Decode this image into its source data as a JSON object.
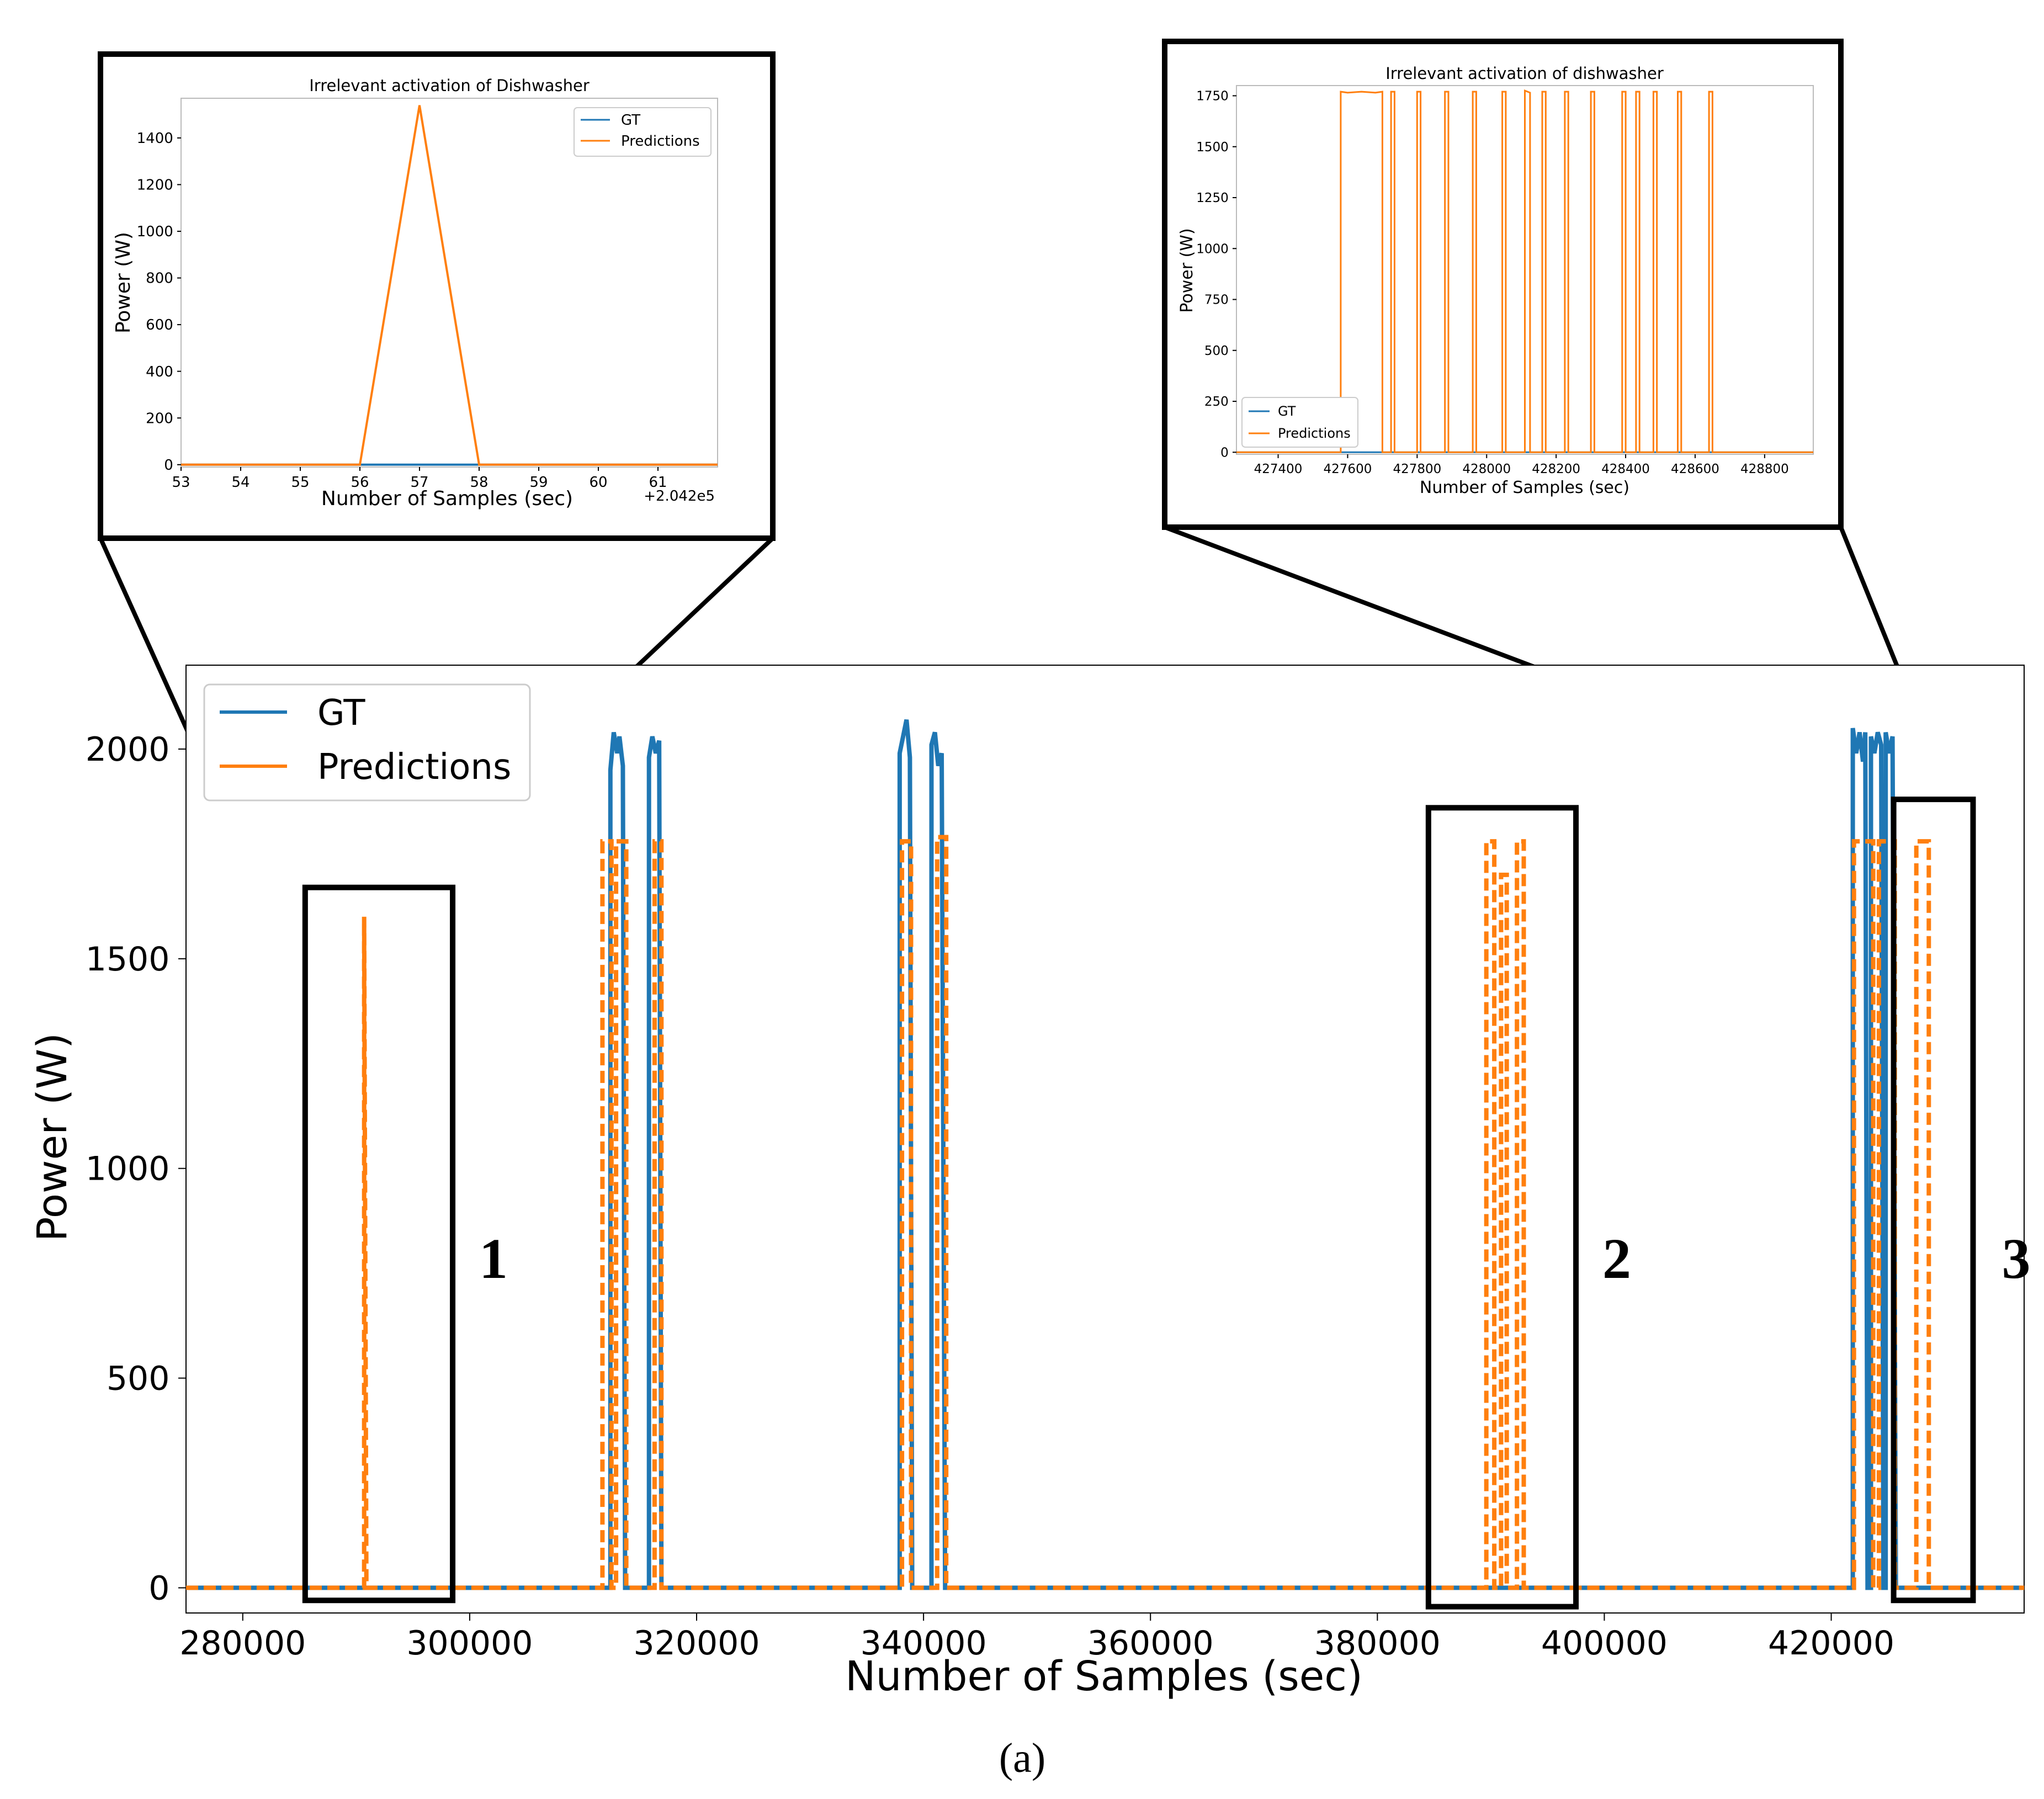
{
  "colors": {
    "gt": "#1f77b4",
    "predictions": "#ff7f0e",
    "frame": "#000000",
    "axes": "#000000"
  },
  "caption": "(a)",
  "chart_data": [
    {
      "id": "main",
      "type": "line",
      "title": "",
      "xlabel": "Number of Samples (sec)",
      "ylabel": "Power (W)",
      "xlim": [
        275000,
        437000
      ],
      "ylim": [
        -60,
        2200
      ],
      "xticks": [
        280000,
        300000,
        320000,
        340000,
        360000,
        380000,
        400000,
        420000
      ],
      "xtick_labels": [
        "280000",
        "300000",
        "320000",
        "340000",
        "360000",
        "380000",
        "400000",
        "420000"
      ],
      "yticks": [
        0,
        500,
        1000,
        1500,
        2000
      ],
      "ytick_labels": [
        "0",
        "500",
        "1000",
        "1500",
        "2000"
      ],
      "legend": {
        "placement": "top-left",
        "entries": [
          "GT",
          "Predictions"
        ]
      },
      "series": [
        {
          "name": "GT",
          "style": "solid",
          "points": [
            [
              275000,
              0
            ],
            [
              312400,
              0
            ],
            [
              312400,
              1950
            ],
            [
              312700,
              2040
            ],
            [
              313000,
              1990
            ],
            [
              313200,
              2030
            ],
            [
              313500,
              1960
            ],
            [
              313700,
              0
            ],
            [
              315800,
              0
            ],
            [
              315800,
              1980
            ],
            [
              316100,
              2030
            ],
            [
              316400,
              1990
            ],
            [
              316700,
              2020
            ],
            [
              316900,
              0
            ],
            [
              337900,
              0
            ],
            [
              337900,
              1990
            ],
            [
              338200,
              2030
            ],
            [
              338500,
              2070
            ],
            [
              338800,
              1980
            ],
            [
              339000,
              0
            ],
            [
              340700,
              0
            ],
            [
              340700,
              2010
            ],
            [
              341000,
              2040
            ],
            [
              341300,
              1960
            ],
            [
              341600,
              1990
            ],
            [
              341900,
              0
            ],
            [
              421900,
              0
            ],
            [
              421900,
              2050
            ],
            [
              422200,
              1990
            ],
            [
              422500,
              2040
            ],
            [
              422800,
              1970
            ],
            [
              423000,
              2040
            ],
            [
              423200,
              0
            ],
            [
              423500,
              0
            ],
            [
              423500,
              2030
            ],
            [
              423800,
              1990
            ],
            [
              424100,
              2040
            ],
            [
              424400,
              2010
            ],
            [
              424600,
              0
            ],
            [
              424800,
              0
            ],
            [
              424800,
              2040
            ],
            [
              425100,
              1990
            ],
            [
              425400,
              2030
            ],
            [
              425700,
              0
            ],
            [
              437000,
              0
            ]
          ]
        },
        {
          "name": "Predictions",
          "style": "dashed",
          "points": [
            [
              275000,
              0
            ],
            [
              290700,
              0
            ],
            [
              290700,
              1600
            ],
            [
              290900,
              0
            ],
            [
              311700,
              0
            ],
            [
              311700,
              1780
            ],
            [
              312500,
              1780
            ],
            [
              312500,
              0
            ],
            [
              312900,
              0
            ],
            [
              312900,
              1780
            ],
            [
              313800,
              1780
            ],
            [
              313800,
              0
            ],
            [
              316300,
              0
            ],
            [
              316300,
              1780
            ],
            [
              316900,
              1780
            ],
            [
              316900,
              0
            ],
            [
              338100,
              0
            ],
            [
              338100,
              1780
            ],
            [
              338900,
              1780
            ],
            [
              338900,
              0
            ],
            [
              341200,
              0
            ],
            [
              341200,
              1790
            ],
            [
              342000,
              1790
            ],
            [
              342000,
              0
            ],
            [
              389600,
              0
            ],
            [
              389600,
              1780
            ],
            [
              390300,
              1780
            ],
            [
              390300,
              0
            ],
            [
              390900,
              0
            ],
            [
              390900,
              1700
            ],
            [
              391400,
              1700
            ],
            [
              391400,
              0
            ],
            [
              392300,
              0
            ],
            [
              392300,
              1780
            ],
            [
              392900,
              1780
            ],
            [
              392900,
              0
            ],
            [
              422000,
              0
            ],
            [
              422000,
              1780
            ],
            [
              423700,
              1780
            ],
            [
              423700,
              0
            ],
            [
              424200,
              0
            ],
            [
              424200,
              1780
            ],
            [
              425600,
              1780
            ],
            [
              425600,
              0
            ],
            [
              427500,
              0
            ],
            [
              427500,
              1780
            ],
            [
              428600,
              1780
            ],
            [
              428600,
              0
            ],
            [
              437000,
              0
            ]
          ]
        }
      ],
      "boxes": [
        {
          "label": "1",
          "x0": 285500,
          "x1": 298500,
          "y0": -30,
          "y1": 1670
        },
        {
          "label": "2",
          "x0": 384500,
          "x1": 397500,
          "y0": -45,
          "y1": 1860
        },
        {
          "label": "3",
          "x0": 425500,
          "x1": 432500,
          "y0": -30,
          "y1": 1880
        }
      ]
    },
    {
      "id": "inset1",
      "type": "line",
      "title": "Irrelevant activation of Dishwasher",
      "xlabel": "Number of Samples (sec)",
      "ylabel": "Power (W)",
      "offset_label": "+2.042e5",
      "xlim": [
        53,
        62
      ],
      "ylim": [
        -10,
        1570
      ],
      "xticks": [
        53,
        54,
        55,
        56,
        57,
        58,
        59,
        60,
        61
      ],
      "xtick_labels": [
        "53",
        "54",
        "55",
        "56",
        "57",
        "58",
        "59",
        "60",
        "61"
      ],
      "yticks": [
        0,
        200,
        400,
        600,
        800,
        1000,
        1200,
        1400
      ],
      "ytick_labels": [
        "0",
        "200",
        "400",
        "600",
        "800",
        "1000",
        "1200",
        "1400"
      ],
      "legend": {
        "placement": "top-right",
        "entries": [
          "GT",
          "Predictions"
        ]
      },
      "series": [
        {
          "name": "GT",
          "points": [
            [
              53,
              0
            ],
            [
              56,
              0
            ],
            [
              57,
              0
            ],
            [
              58,
              0
            ],
            [
              62,
              0
            ]
          ]
        },
        {
          "name": "Predictions",
          "points": [
            [
              53,
              0
            ],
            [
              56,
              0
            ],
            [
              57,
              1540
            ],
            [
              58,
              0
            ],
            [
              62,
              0
            ]
          ]
        }
      ]
    },
    {
      "id": "inset2",
      "type": "line",
      "title": "Irrelevant activation of dishwasher",
      "xlabel": "Number of Samples (sec)",
      "ylabel": "Power (W)",
      "xlim": [
        427280,
        428940
      ],
      "ylim": [
        -10,
        1800
      ],
      "xticks": [
        427400,
        427600,
        427800,
        428000,
        428200,
        428400,
        428600,
        428800
      ],
      "xtick_labels": [
        "427400",
        "427600",
        "427800",
        "428000",
        "428200",
        "428400",
        "428600",
        "428800"
      ],
      "yticks": [
        0,
        250,
        500,
        750,
        1000,
        1250,
        1500,
        1750
      ],
      "ytick_labels": [
        "0",
        "250",
        "500",
        "750",
        "1000",
        "1250",
        "1500",
        "1750"
      ],
      "legend": {
        "placement": "bottom-left",
        "entries": [
          "GT",
          "Predictions"
        ]
      },
      "series": [
        {
          "name": "GT",
          "points": [
            [
              427280,
              0
            ],
            [
              428940,
              0
            ]
          ]
        },
        {
          "name": "Predictions",
          "points": [
            [
              427280,
              0
            ],
            [
              427580,
              0
            ],
            [
              427580,
              1770
            ],
            [
              427600,
              1765
            ],
            [
              427640,
              1770
            ],
            [
              427680,
              1765
            ],
            [
              427700,
              1770
            ],
            [
              427700,
              0
            ],
            [
              427725,
              0
            ],
            [
              427725,
              1770
            ],
            [
              427735,
              1770
            ],
            [
              427735,
              0
            ],
            [
              427800,
              0
            ],
            [
              427800,
              1770
            ],
            [
              427810,
              1770
            ],
            [
              427810,
              0
            ],
            [
              427880,
              0
            ],
            [
              427880,
              1770
            ],
            [
              427890,
              1770
            ],
            [
              427890,
              0
            ],
            [
              427960,
              0
            ],
            [
              427960,
              1770
            ],
            [
              427970,
              1770
            ],
            [
              427970,
              0
            ],
            [
              428045,
              0
            ],
            [
              428045,
              1770
            ],
            [
              428055,
              1770
            ],
            [
              428055,
              0
            ],
            [
              428110,
              0
            ],
            [
              428110,
              1775
            ],
            [
              428125,
              1765
            ],
            [
              428125,
              0
            ],
            [
              428160,
              0
            ],
            [
              428160,
              1770
            ],
            [
              428170,
              1770
            ],
            [
              428170,
              0
            ],
            [
              428225,
              0
            ],
            [
              428225,
              1770
            ],
            [
              428235,
              1770
            ],
            [
              428235,
              0
            ],
            [
              428300,
              0
            ],
            [
              428300,
              1770
            ],
            [
              428310,
              1770
            ],
            [
              428310,
              0
            ],
            [
              428390,
              0
            ],
            [
              428390,
              1770
            ],
            [
              428400,
              1770
            ],
            [
              428400,
              0
            ],
            [
              428430,
              0
            ],
            [
              428430,
              1770
            ],
            [
              428440,
              1770
            ],
            [
              428440,
              0
            ],
            [
              428480,
              0
            ],
            [
              428480,
              1770
            ],
            [
              428490,
              1770
            ],
            [
              428490,
              0
            ],
            [
              428550,
              0
            ],
            [
              428550,
              1770
            ],
            [
              428560,
              1770
            ],
            [
              428560,
              0
            ],
            [
              428640,
              0
            ],
            [
              428640,
              1770
            ],
            [
              428650,
              1770
            ],
            [
              428650,
              0
            ],
            [
              428940,
              0
            ]
          ]
        }
      ]
    }
  ]
}
